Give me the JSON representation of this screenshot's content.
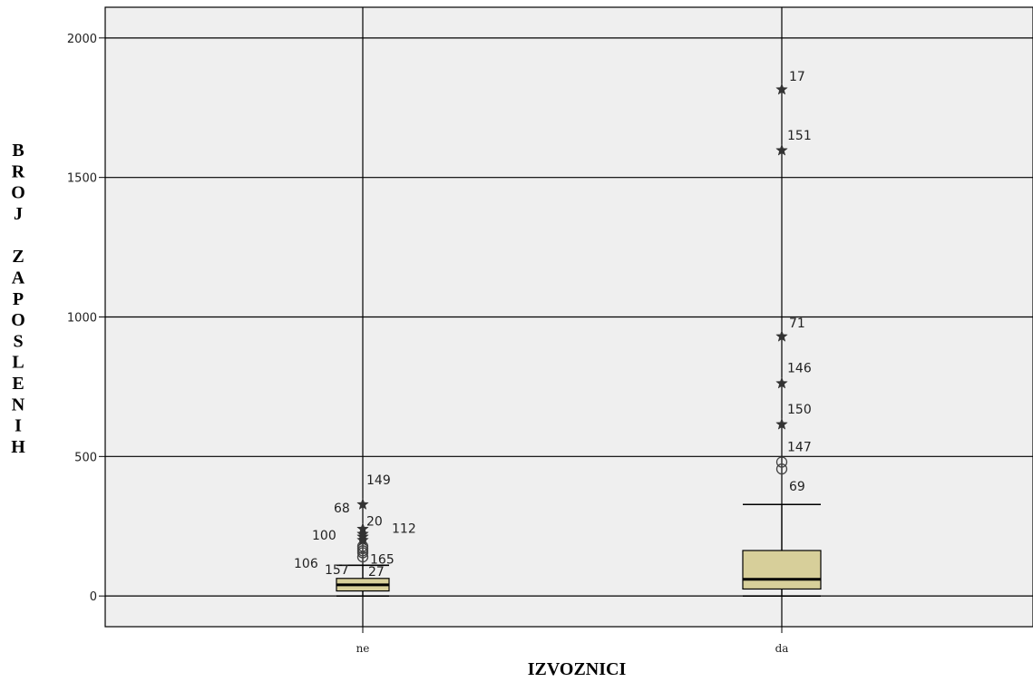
{
  "chart_data": {
    "type": "box",
    "xlabel": "IZVOZNICI",
    "ylabel": "BROJ ZAPOSLENIH",
    "ylim": [
      -110,
      2110
    ],
    "yticks": [
      0,
      500,
      1000,
      1500,
      2000
    ],
    "grid": true,
    "categories": [
      "ne",
      "da"
    ],
    "boxes": [
      {
        "category": "ne",
        "min": 0,
        "q1": 18,
        "median": 40,
        "q3": 63,
        "max": 110,
        "outliers": [
          {
            "value": 140,
            "kind": "circle",
            "label": "106"
          },
          {
            "value": 155,
            "kind": "circle",
            "label": "165"
          },
          {
            "value": 162,
            "kind": "circle",
            "label": ""
          },
          {
            "value": 170,
            "kind": "circle",
            "label": "100"
          },
          {
            "value": 178,
            "kind": "circle",
            "label": ""
          },
          {
            "value": 200,
            "kind": "star",
            "label": "112"
          },
          {
            "value": 212,
            "kind": "star",
            "label": ""
          },
          {
            "value": 222,
            "kind": "star",
            "label": ""
          },
          {
            "value": 240,
            "kind": "star",
            "label": "20"
          },
          {
            "value": 328,
            "kind": "star",
            "label": "149"
          }
        ],
        "extra_labels": [
          "68",
          "157",
          "27"
        ]
      },
      {
        "category": "da",
        "min": 0,
        "q1": 25,
        "median": 60,
        "q3": 163,
        "max": 328,
        "outliers": [
          {
            "value": 455,
            "kind": "circle",
            "label": "69"
          },
          {
            "value": 480,
            "kind": "circle",
            "label": "147"
          },
          {
            "value": 615,
            "kind": "star",
            "label": "150"
          },
          {
            "value": 762,
            "kind": "star",
            "label": "146"
          },
          {
            "value": 930,
            "kind": "star",
            "label": "71"
          },
          {
            "value": 1597,
            "kind": "star",
            "label": "151"
          },
          {
            "value": 1815,
            "kind": "star",
            "label": "17"
          }
        ]
      }
    ]
  },
  "colors": {
    "plot_bg": "#efefef",
    "grid": "#000000",
    "box_fill": "#d7cf9a"
  }
}
